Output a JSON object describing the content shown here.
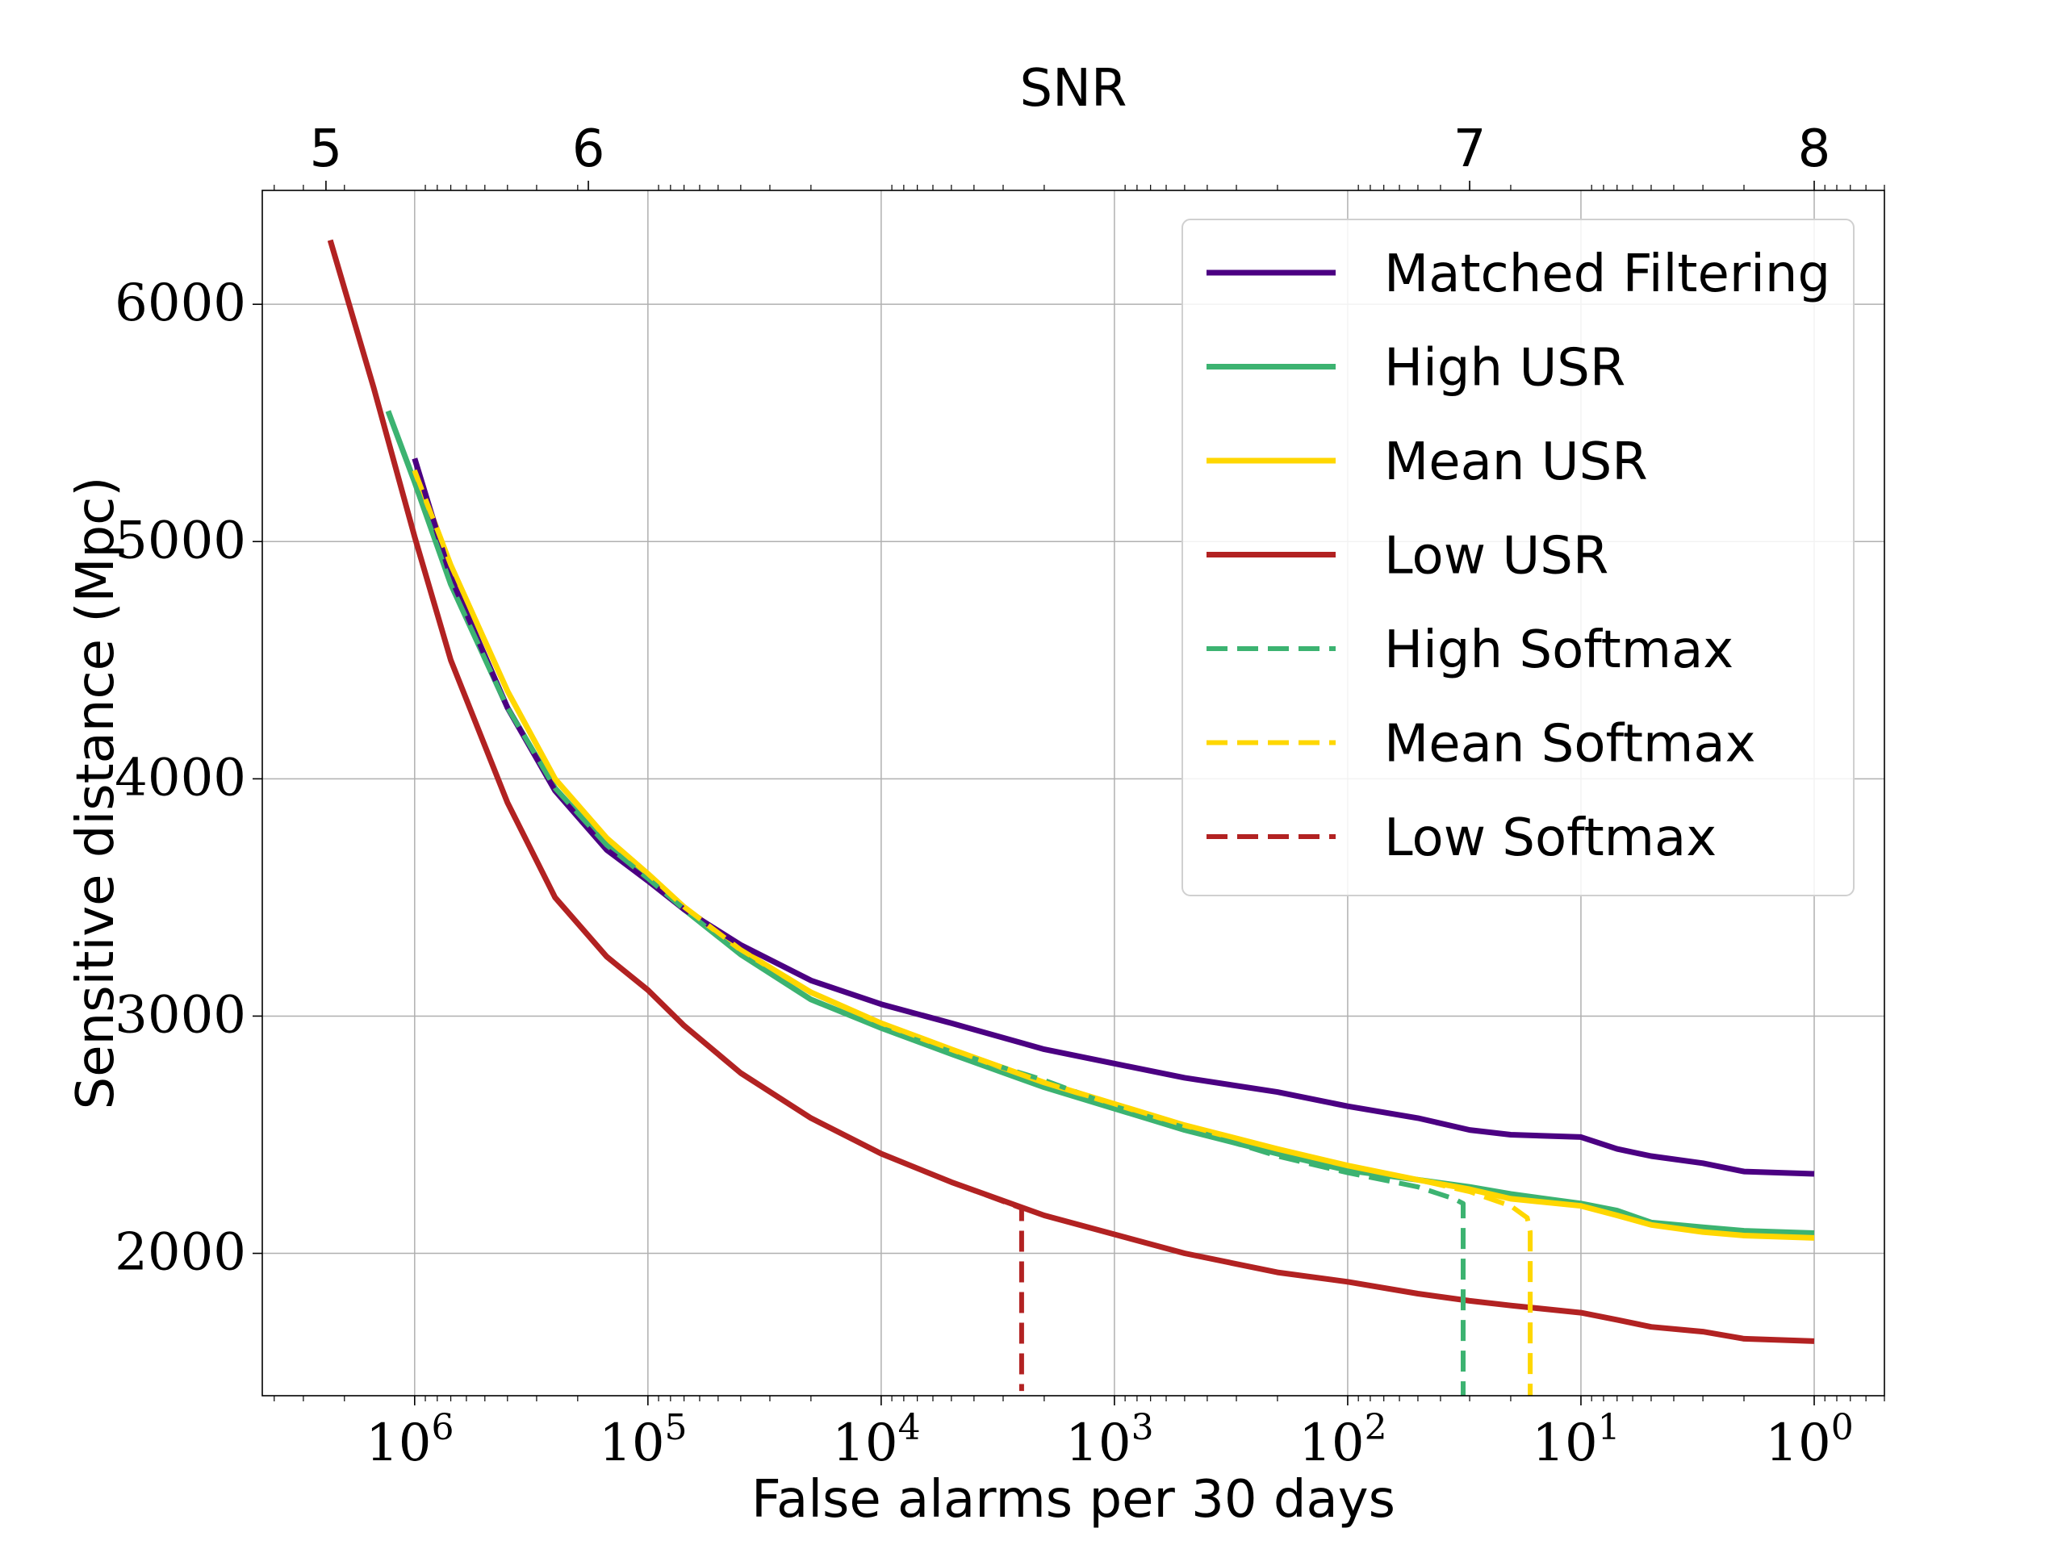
{
  "chart_data": {
    "type": "line",
    "xlabel": "False alarms per 30 days",
    "ylabel": "Sensitive distance (Mpc)",
    "top_xlabel": "SNR",
    "x_scale": "log",
    "x_reversed": true,
    "xlim": [
      4500000,
      0.5
    ],
    "ylim": [
      1400,
      6480
    ],
    "grid": true,
    "legend_position": "top-right",
    "x_ticks": [
      {
        "value": 1000000,
        "base": "10",
        "exp": "6"
      },
      {
        "value": 100000,
        "base": "10",
        "exp": "5"
      },
      {
        "value": 10000,
        "base": "10",
        "exp": "4"
      },
      {
        "value": 1000,
        "base": "10",
        "exp": "3"
      },
      {
        "value": 100,
        "base": "10",
        "exp": "2"
      },
      {
        "value": 10,
        "base": "10",
        "exp": "1"
      },
      {
        "value": 1,
        "base": "10",
        "exp": "0"
      }
    ],
    "y_ticks": [
      {
        "value": 2000,
        "label": "2000"
      },
      {
        "value": 3000,
        "label": "3000"
      },
      {
        "value": 4000,
        "label": "4000"
      },
      {
        "value": 5000,
        "label": "5000"
      },
      {
        "value": 6000,
        "label": "6000"
      }
    ],
    "snr_ticks": [
      {
        "label": "5",
        "x": 2400000
      },
      {
        "label": "6",
        "x": 180000
      },
      {
        "label": "7",
        "x": 30
      },
      {
        "label": "8",
        "x": 1
      }
    ],
    "series": [
      {
        "name": "Matched Filtering",
        "color": "#4b0082",
        "dash": false,
        "x": [
          1000000,
          700000,
          400000,
          250000,
          150000,
          100000,
          70000,
          40000,
          20000,
          10000,
          5000,
          2000,
          1000,
          500,
          200,
          100,
          50,
          30,
          20,
          10,
          7,
          5,
          3,
          2,
          1
        ],
        "y": [
          5350,
          4850,
          4300,
          3950,
          3700,
          3570,
          3450,
          3300,
          3150,
          3050,
          2970,
          2860,
          2800,
          2740,
          2680,
          2620,
          2570,
          2520,
          2500,
          2490,
          2440,
          2410,
          2380,
          2345,
          2335
        ]
      },
      {
        "name": "High USR",
        "color": "#3cb371",
        "dash": false,
        "x": [
          1300000,
          1000000,
          700000,
          400000,
          250000,
          150000,
          100000,
          70000,
          40000,
          20000,
          10000,
          5000,
          2000,
          1000,
          500,
          200,
          100,
          50,
          30,
          20,
          10,
          7,
          5,
          3,
          2,
          1
        ],
        "y": [
          5550,
          5250,
          4820,
          4300,
          3960,
          3720,
          3580,
          3450,
          3260,
          3070,
          2950,
          2840,
          2700,
          2610,
          2520,
          2420,
          2350,
          2310,
          2280,
          2250,
          2210,
          2180,
          2130,
          2110,
          2095,
          2085
        ]
      },
      {
        "name": "Mean USR",
        "color": "#ffd700",
        "dash": false,
        "x": [
          1000000,
          700000,
          400000,
          250000,
          150000,
          100000,
          70000,
          40000,
          20000,
          10000,
          5000,
          2000,
          1000,
          500,
          200,
          100,
          50,
          30,
          20,
          10,
          7,
          5,
          3,
          2,
          1
        ],
        "y": [
          5300,
          4900,
          4370,
          4000,
          3750,
          3600,
          3460,
          3280,
          3100,
          2970,
          2860,
          2720,
          2630,
          2540,
          2440,
          2370,
          2310,
          2270,
          2230,
          2200,
          2160,
          2120,
          2090,
          2075,
          2065
        ]
      },
      {
        "name": "Low USR",
        "color": "#b22222",
        "dash": false,
        "x": [
          2300000,
          1500000,
          1000000,
          700000,
          400000,
          250000,
          150000,
          100000,
          70000,
          40000,
          20000,
          10000,
          5000,
          2000,
          1000,
          500,
          200,
          100,
          50,
          30,
          20,
          10,
          7,
          5,
          3,
          2,
          1
        ],
        "y": [
          6270,
          5650,
          5020,
          4500,
          3900,
          3500,
          3250,
          3110,
          2960,
          2760,
          2570,
          2420,
          2300,
          2160,
          2080,
          2000,
          1920,
          1880,
          1830,
          1800,
          1780,
          1750,
          1720,
          1690,
          1670,
          1640,
          1630
        ]
      },
      {
        "name": "High Softmax",
        "color": "#3cb371",
        "dash": true,
        "x": [
          1000000,
          700000,
          400000,
          250000,
          150000,
          100000,
          70000,
          40000,
          20000,
          10000,
          5000,
          2000,
          1000,
          500,
          200,
          100,
          50,
          35,
          32,
          32
        ],
        "y": [
          5250,
          4820,
          4300,
          3960,
          3720,
          3580,
          3450,
          3260,
          3070,
          2950,
          2850,
          2730,
          2620,
          2530,
          2410,
          2340,
          2280,
          2230,
          2210,
          1400
        ]
      },
      {
        "name": "Mean Softmax",
        "color": "#ffd700",
        "dash": true,
        "x": [
          1000000,
          700000,
          400000,
          250000,
          150000,
          100000,
          70000,
          40000,
          20000,
          10000,
          5000,
          2000,
          1000,
          500,
          200,
          100,
          50,
          30,
          20,
          17,
          16.5,
          16.5
        ],
        "y": [
          5300,
          4900,
          4370,
          4000,
          3750,
          3600,
          3460,
          3280,
          3100,
          2970,
          2860,
          2720,
          2630,
          2540,
          2440,
          2370,
          2310,
          2260,
          2200,
          2150,
          2090,
          1400
        ]
      },
      {
        "name": "Low Softmax",
        "color": "#b22222",
        "dash": true,
        "x": [
          2300000,
          1500000,
          1000000,
          700000,
          400000,
          250000,
          150000,
          100000,
          70000,
          40000,
          20000,
          10000,
          5000,
          2500,
          2500
        ],
        "y": [
          6270,
          5650,
          5020,
          4500,
          3900,
          3500,
          3250,
          3110,
          2960,
          2760,
          2570,
          2420,
          2300,
          2190,
          1420
        ]
      }
    ]
  }
}
